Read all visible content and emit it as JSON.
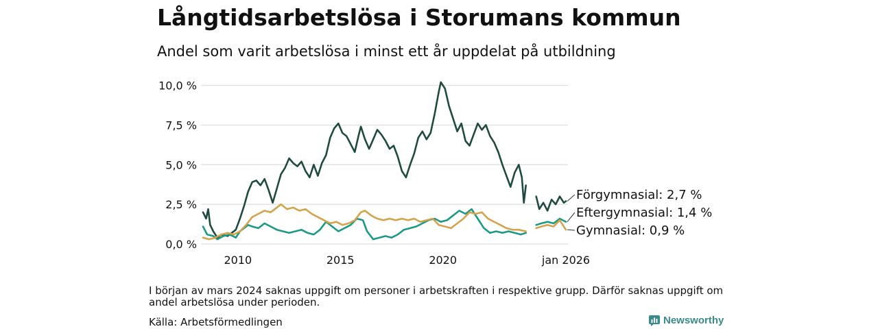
{
  "header": {
    "title": "Långtidsarbetslösa i Storumans kommun",
    "subtitle": "Andel som varit arbetslösa i minst ett år uppdelat på utbildning"
  },
  "footer": {
    "note": "I början av mars 2024 saknas uppgift om personer i arbetskraften i respektive grupp. Därför saknas uppgift om andel arbetslösa under perioden.",
    "source": "Källa: Arbetsförmedlingen",
    "brand": "Newsworthy"
  },
  "colors": {
    "forgymnasial": "#1f4a40",
    "eftergymnasial": "#1a9985",
    "gymnasial": "#d4a24a",
    "grid": "#dddddd",
    "brand": "#3a8a8c"
  },
  "chart_data": {
    "type": "line",
    "title": "Långtidsarbetslösa i Storumans kommun",
    "subtitle": "Andel som varit arbetslösa i minst ett år uppdelat på utbildning",
    "xlabel": "",
    "ylabel": "",
    "x_unit": "year (decimal)",
    "xlim": [
      2008.2,
      2026.1
    ],
    "ylim": [
      0,
      10.5
    ],
    "y_ticks": [
      0,
      2.5,
      5,
      7.5,
      10
    ],
    "y_tick_labels": [
      "0,0 %",
      "2,5 %",
      "5,0 %",
      "7,5 %",
      "10,0 %"
    ],
    "x_ticks": [
      2010,
      2015,
      2020,
      2026
    ],
    "x_tick_labels": [
      "2010",
      "2015",
      "2020",
      "jan 2026"
    ],
    "gap": [
      2024.1,
      2024.55
    ],
    "series": [
      {
        "name": "Förgymnasial",
        "label": "Förgymnasial: 2,7 %",
        "color_key": "forgymnasial",
        "points": [
          [
            2008.3,
            2.0
          ],
          [
            2008.45,
            1.6
          ],
          [
            2008.55,
            2.2
          ],
          [
            2008.65,
            1.2
          ],
          [
            2008.8,
            0.8
          ],
          [
            2009.0,
            0.4
          ],
          [
            2009.2,
            0.6
          ],
          [
            2009.5,
            0.5
          ],
          [
            2009.7,
            0.7
          ],
          [
            2009.9,
            0.9
          ],
          [
            2010.1,
            1.6
          ],
          [
            2010.3,
            2.4
          ],
          [
            2010.5,
            3.3
          ],
          [
            2010.7,
            3.9
          ],
          [
            2010.9,
            4.0
          ],
          [
            2011.1,
            3.7
          ],
          [
            2011.3,
            4.1
          ],
          [
            2011.5,
            3.4
          ],
          [
            2011.7,
            2.6
          ],
          [
            2011.9,
            3.5
          ],
          [
            2012.1,
            4.4
          ],
          [
            2012.3,
            4.8
          ],
          [
            2012.5,
            5.4
          ],
          [
            2012.7,
            5.1
          ],
          [
            2012.9,
            4.9
          ],
          [
            2013.1,
            5.2
          ],
          [
            2013.3,
            4.6
          ],
          [
            2013.5,
            4.2
          ],
          [
            2013.7,
            5.0
          ],
          [
            2013.9,
            4.3
          ],
          [
            2014.1,
            5.1
          ],
          [
            2014.3,
            5.6
          ],
          [
            2014.5,
            6.7
          ],
          [
            2014.7,
            7.3
          ],
          [
            2014.9,
            7.6
          ],
          [
            2015.1,
            7.0
          ],
          [
            2015.3,
            6.8
          ],
          [
            2015.5,
            6.3
          ],
          [
            2015.7,
            5.8
          ],
          [
            2015.9,
            6.9
          ],
          [
            2016.0,
            7.4
          ],
          [
            2016.2,
            6.6
          ],
          [
            2016.4,
            6.0
          ],
          [
            2016.6,
            6.6
          ],
          [
            2016.8,
            7.2
          ],
          [
            2017.0,
            6.9
          ],
          [
            2017.2,
            6.5
          ],
          [
            2017.4,
            6.0
          ],
          [
            2017.6,
            6.2
          ],
          [
            2017.8,
            5.5
          ],
          [
            2018.0,
            4.6
          ],
          [
            2018.2,
            4.2
          ],
          [
            2018.4,
            5.0
          ],
          [
            2018.6,
            5.7
          ],
          [
            2018.8,
            6.7
          ],
          [
            2019.0,
            7.1
          ],
          [
            2019.2,
            6.6
          ],
          [
            2019.4,
            7.0
          ],
          [
            2019.6,
            8.2
          ],
          [
            2019.8,
            9.6
          ],
          [
            2019.9,
            10.2
          ],
          [
            2020.1,
            9.8
          ],
          [
            2020.3,
            8.7
          ],
          [
            2020.5,
            7.9
          ],
          [
            2020.7,
            7.1
          ],
          [
            2020.9,
            7.6
          ],
          [
            2021.1,
            6.5
          ],
          [
            2021.3,
            6.2
          ],
          [
            2021.5,
            6.9
          ],
          [
            2021.7,
            7.6
          ],
          [
            2021.9,
            7.2
          ],
          [
            2022.1,
            7.5
          ],
          [
            2022.3,
            6.8
          ],
          [
            2022.5,
            6.4
          ],
          [
            2022.7,
            5.8
          ],
          [
            2022.9,
            5.0
          ],
          [
            2023.1,
            4.3
          ],
          [
            2023.3,
            3.6
          ],
          [
            2023.5,
            4.5
          ],
          [
            2023.7,
            5.0
          ],
          [
            2023.85,
            4.2
          ],
          [
            2023.95,
            2.6
          ],
          [
            2024.05,
            3.7
          ],
          [
            2024.55,
            3.0
          ],
          [
            2024.7,
            2.2
          ],
          [
            2024.9,
            2.6
          ],
          [
            2025.1,
            2.1
          ],
          [
            2025.3,
            2.8
          ],
          [
            2025.5,
            2.5
          ],
          [
            2025.7,
            3.0
          ],
          [
            2025.9,
            2.6
          ],
          [
            2026.0,
            2.7
          ]
        ]
      },
      {
        "name": "Eftergymnasial",
        "label": "Eftergymnasial: 1,4 %",
        "color_key": "eftergymnasial",
        "points": [
          [
            2008.3,
            1.1
          ],
          [
            2008.5,
            0.6
          ],
          [
            2008.8,
            0.5
          ],
          [
            2009.0,
            0.3
          ],
          [
            2009.3,
            0.5
          ],
          [
            2009.6,
            0.6
          ],
          [
            2009.9,
            0.4
          ],
          [
            2010.1,
            0.8
          ],
          [
            2010.3,
            1.0
          ],
          [
            2010.5,
            1.2
          ],
          [
            2010.7,
            1.1
          ],
          [
            2011.0,
            1.0
          ],
          [
            2011.3,
            1.3
          ],
          [
            2011.6,
            1.1
          ],
          [
            2011.9,
            0.9
          ],
          [
            2012.2,
            0.8
          ],
          [
            2012.5,
            0.7
          ],
          [
            2012.8,
            0.8
          ],
          [
            2013.1,
            0.9
          ],
          [
            2013.4,
            0.7
          ],
          [
            2013.7,
            0.6
          ],
          [
            2014.0,
            0.9
          ],
          [
            2014.3,
            1.4
          ],
          [
            2014.6,
            1.1
          ],
          [
            2014.9,
            0.8
          ],
          [
            2015.2,
            1.0
          ],
          [
            2015.5,
            1.2
          ],
          [
            2015.8,
            1.6
          ],
          [
            2016.1,
            1.5
          ],
          [
            2016.3,
            0.8
          ],
          [
            2016.6,
            0.3
          ],
          [
            2016.9,
            0.4
          ],
          [
            2017.2,
            0.5
          ],
          [
            2017.5,
            0.4
          ],
          [
            2017.8,
            0.6
          ],
          [
            2018.1,
            0.9
          ],
          [
            2018.4,
            1.0
          ],
          [
            2018.7,
            1.1
          ],
          [
            2019.0,
            1.3
          ],
          [
            2019.3,
            1.5
          ],
          [
            2019.6,
            1.6
          ],
          [
            2019.9,
            1.4
          ],
          [
            2020.2,
            1.5
          ],
          [
            2020.5,
            1.8
          ],
          [
            2020.8,
            2.1
          ],
          [
            2021.1,
            1.9
          ],
          [
            2021.4,
            2.2
          ],
          [
            2021.7,
            1.6
          ],
          [
            2022.0,
            1.0
          ],
          [
            2022.3,
            0.7
          ],
          [
            2022.6,
            0.8
          ],
          [
            2022.9,
            0.7
          ],
          [
            2023.2,
            0.8
          ],
          [
            2023.5,
            0.7
          ],
          [
            2023.8,
            0.6
          ],
          [
            2024.05,
            0.7
          ],
          [
            2024.55,
            1.2
          ],
          [
            2024.8,
            1.3
          ],
          [
            2025.1,
            1.4
          ],
          [
            2025.4,
            1.3
          ],
          [
            2025.7,
            1.6
          ],
          [
            2026.0,
            1.4
          ]
        ]
      },
      {
        "name": "Gymnasial",
        "label": "Gymnasial: 0,9 %",
        "color_key": "gymnasial",
        "points": [
          [
            2008.3,
            0.4
          ],
          [
            2008.6,
            0.3
          ],
          [
            2008.9,
            0.4
          ],
          [
            2009.2,
            0.6
          ],
          [
            2009.5,
            0.7
          ],
          [
            2009.8,
            0.6
          ],
          [
            2010.1,
            0.8
          ],
          [
            2010.4,
            1.2
          ],
          [
            2010.7,
            1.7
          ],
          [
            2011.0,
            1.9
          ],
          [
            2011.3,
            2.1
          ],
          [
            2011.6,
            2.0
          ],
          [
            2011.9,
            2.3
          ],
          [
            2012.1,
            2.5
          ],
          [
            2012.4,
            2.2
          ],
          [
            2012.7,
            2.3
          ],
          [
            2013.0,
            2.1
          ],
          [
            2013.3,
            2.2
          ],
          [
            2013.6,
            1.9
          ],
          [
            2013.9,
            1.7
          ],
          [
            2014.2,
            1.5
          ],
          [
            2014.5,
            1.3
          ],
          [
            2014.8,
            1.4
          ],
          [
            2015.1,
            1.2
          ],
          [
            2015.4,
            1.3
          ],
          [
            2015.7,
            1.5
          ],
          [
            2016.0,
            2.0
          ],
          [
            2016.2,
            2.1
          ],
          [
            2016.5,
            1.8
          ],
          [
            2016.8,
            1.6
          ],
          [
            2017.1,
            1.5
          ],
          [
            2017.4,
            1.6
          ],
          [
            2017.7,
            1.5
          ],
          [
            2018.0,
            1.6
          ],
          [
            2018.3,
            1.5
          ],
          [
            2018.6,
            1.6
          ],
          [
            2018.9,
            1.4
          ],
          [
            2019.2,
            1.5
          ],
          [
            2019.5,
            1.6
          ],
          [
            2019.8,
            1.2
          ],
          [
            2020.1,
            1.1
          ],
          [
            2020.4,
            1.0
          ],
          [
            2020.7,
            1.3
          ],
          [
            2021.0,
            1.6
          ],
          [
            2021.3,
            2.0
          ],
          [
            2021.6,
            1.9
          ],
          [
            2021.9,
            2.0
          ],
          [
            2022.2,
            1.6
          ],
          [
            2022.5,
            1.4
          ],
          [
            2022.8,
            1.2
          ],
          [
            2023.1,
            1.0
          ],
          [
            2023.4,
            0.9
          ],
          [
            2023.7,
            0.9
          ],
          [
            2024.05,
            0.8
          ],
          [
            2024.55,
            1.0
          ],
          [
            2024.8,
            1.1
          ],
          [
            2025.1,
            1.2
          ],
          [
            2025.4,
            1.1
          ],
          [
            2025.7,
            1.5
          ],
          [
            2026.0,
            0.9
          ]
        ]
      }
    ]
  }
}
